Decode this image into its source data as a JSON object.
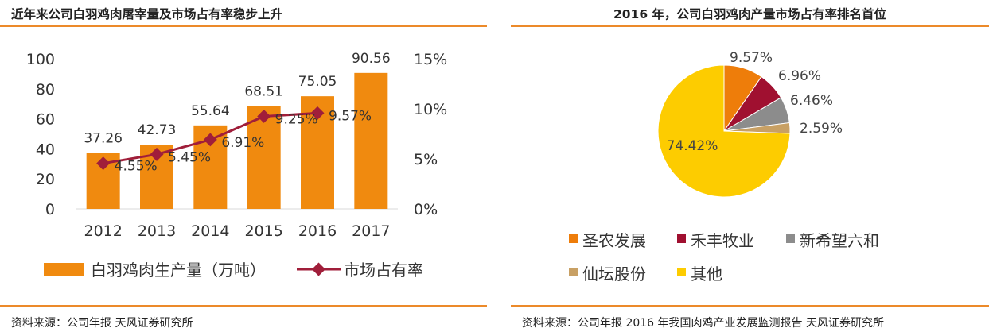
{
  "left": {
    "title": "近年来公司白羽鸡肉屠宰量及市场占有率稳步上升",
    "source": "资料来源：公司年报    天风证券研究所"
  },
  "right": {
    "title": "2016 年，公司白羽鸡肉产量市场占有率排名首位",
    "source": "资料来源：公司年报  2016 年我国肉鸡产业发展监测报告  天风证券研究所"
  },
  "colors": {
    "rule": "#ec8a2a",
    "bar": "#f08a0f",
    "line": "#a01e3a"
  },
  "chart_data": [
    {
      "type": "bar",
      "categories": [
        "2012",
        "2013",
        "2014",
        "2015",
        "2016",
        "2017"
      ],
      "series": [
        {
          "name": "白羽鸡肉生产量（万吨）",
          "type": "bar",
          "axis": "left",
          "values": [
            37.26,
            42.73,
            55.64,
            68.51,
            75.05,
            90.56
          ],
          "labels": [
            "37.26",
            "42.73",
            "55.64",
            "68.51",
            "75.05",
            "90.56"
          ],
          "color": "#f08a0f"
        },
        {
          "name": "市场占有率",
          "type": "line",
          "axis": "right",
          "values": [
            4.55,
            5.45,
            6.91,
            9.25,
            9.57,
            null
          ],
          "labels": [
            "4.55%",
            "5.45%",
            "6.91%",
            "9.25%",
            "9.57%",
            null
          ],
          "color": "#a01e3a"
        }
      ],
      "y_left": {
        "lim": [
          0,
          100
        ],
        "ticks": [
          "0",
          "20",
          "40",
          "60",
          "80",
          "100"
        ]
      },
      "y_right": {
        "lim": [
          0,
          15
        ],
        "ticks": [
          "0%",
          "5%",
          "10%",
          "15%"
        ]
      },
      "legend_position": "bottom",
      "grid": false
    },
    {
      "type": "pie",
      "slices": [
        {
          "name": "圣农发展",
          "value": 9.57,
          "label": "9.57%",
          "color": "#ee7d0a"
        },
        {
          "name": "禾丰牧业",
          "value": 6.96,
          "label": "6.96%",
          "color": "#a01030"
        },
        {
          "name": "新希望六和",
          "value": 6.46,
          "label": "6.46%",
          "color": "#8c8c8c"
        },
        {
          "name": "仙坛股份",
          "value": 2.59,
          "label": "2.59%",
          "color": "#c8a064"
        },
        {
          "name": "其他",
          "value": 74.42,
          "label": "74.42%",
          "color": "#fdcc00"
        }
      ],
      "legend_position": "bottom"
    }
  ]
}
